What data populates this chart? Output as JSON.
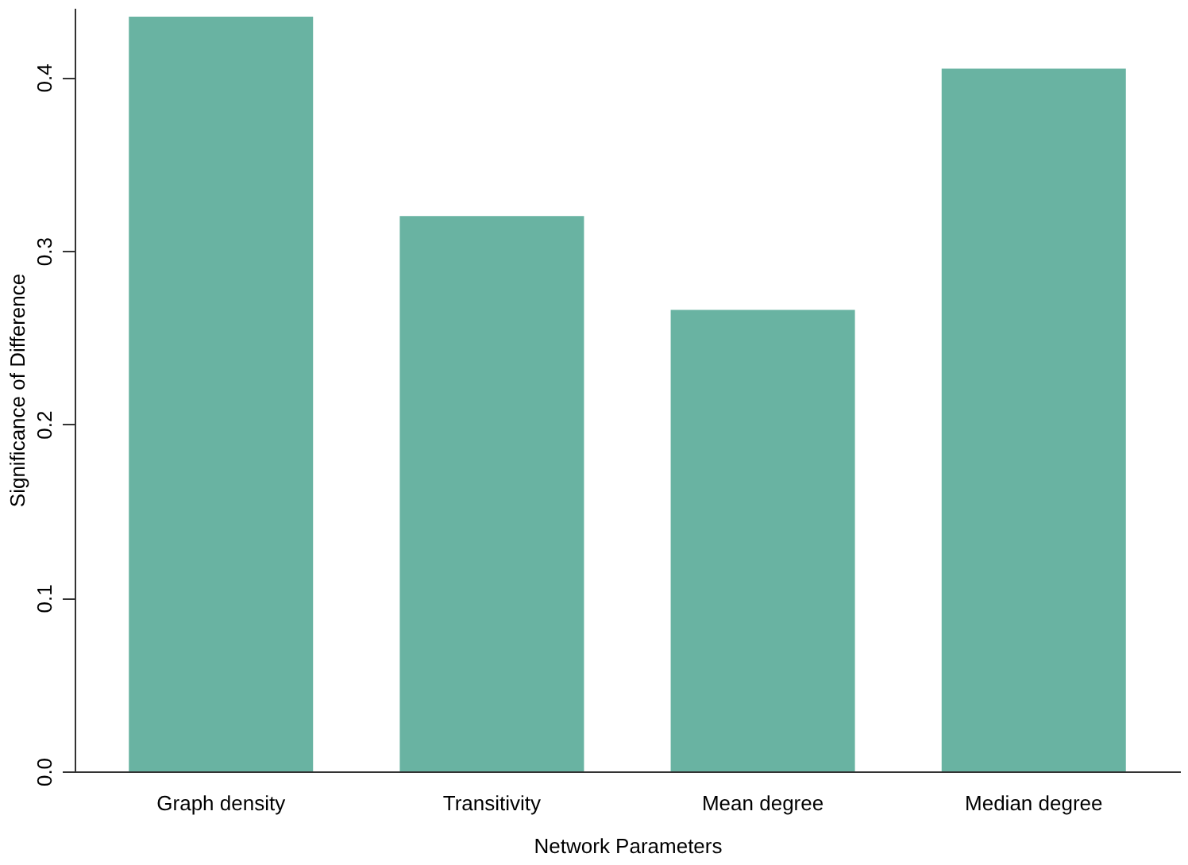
{
  "chart_data": {
    "type": "bar",
    "xlabel": "Network Parameters",
    "ylabel": "Significance of Difference",
    "categories": [
      "Graph density",
      "Transitivity",
      "Mean degree",
      "Median degree"
    ],
    "values": [
      0.435,
      0.32,
      0.266,
      0.405
    ],
    "color": "#69b3a2",
    "ylim": [
      0,
      0.44
    ],
    "yticks": [
      {
        "value": 0,
        "label": "0.0"
      },
      0.1,
      0.2,
      0.3,
      0.4
    ],
    "grid": false
  }
}
